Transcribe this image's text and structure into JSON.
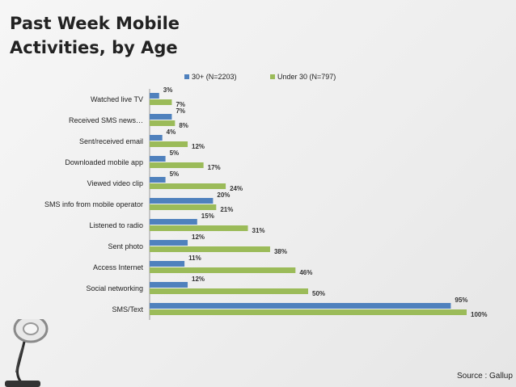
{
  "slide": {
    "title_line1": "Past Week Mobile",
    "title_line2": "Activities, by Age",
    "source": "Source : Gallup"
  },
  "colors": {
    "series_30plus": "#4f81bd",
    "series_under30": "#9bbb59"
  },
  "icons": [
    "desk-lamp-icon"
  ],
  "chart_data": {
    "type": "bar",
    "orientation": "horizontal",
    "title": "Past Week Mobile Activities, by Age",
    "categories": [
      "Watched live TV",
      "Received SMS news…",
      "Sent/received email",
      "Downloaded mobile app",
      "Viewed video clip",
      "SMS info from mobile operator",
      "Listened to radio",
      "Sent photo",
      "Access Internet",
      "Social networking",
      "SMS/Text"
    ],
    "series": [
      {
        "name": "30+ (N=2203)",
        "values": [
          3,
          7,
          4,
          5,
          5,
          20,
          15,
          12,
          11,
          12,
          95
        ]
      },
      {
        "name": "Under 30 (N=797)",
        "values": [
          7,
          8,
          12,
          17,
          24,
          21,
          31,
          38,
          46,
          50,
          100
        ]
      }
    ],
    "value_suffix": "%",
    "xlim": [
      0,
      100
    ],
    "grid": false,
    "legend_position": "top"
  }
}
